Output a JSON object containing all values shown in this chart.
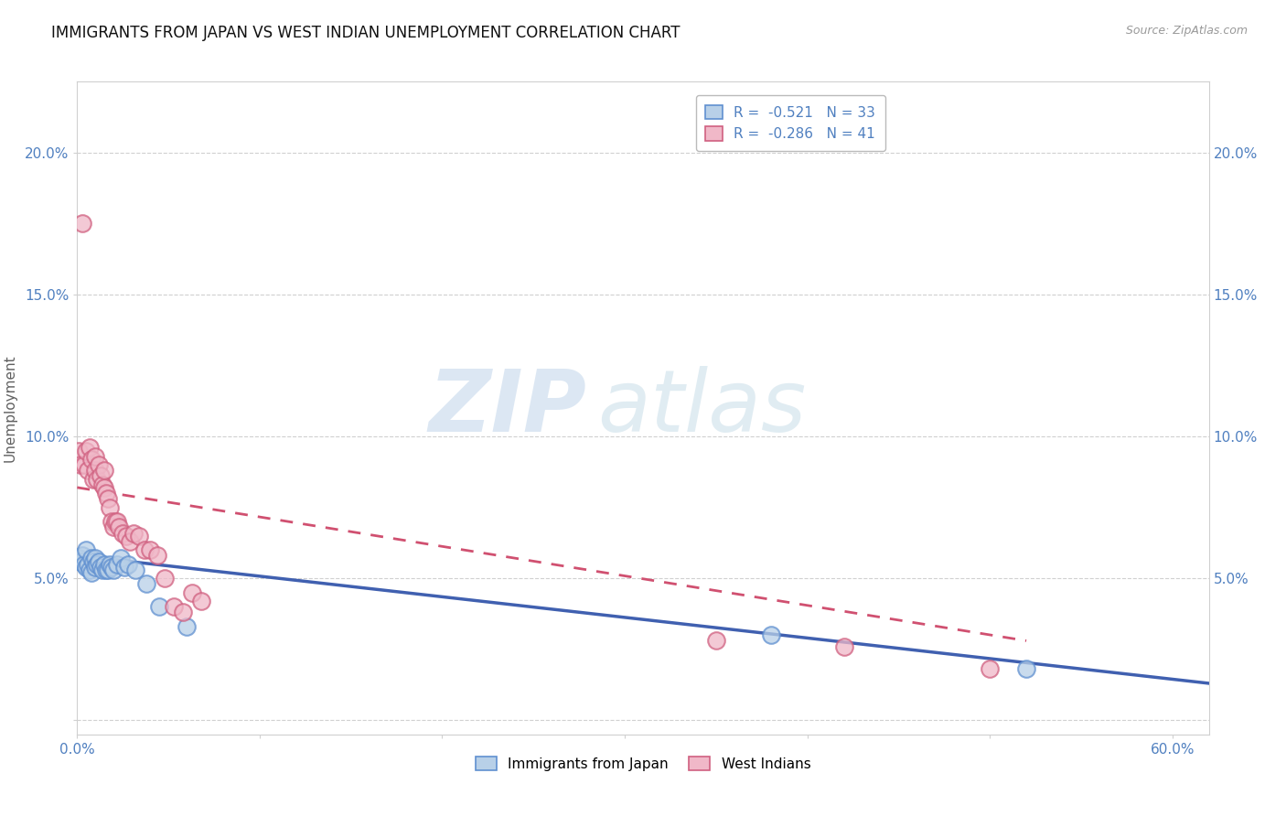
{
  "title": "IMMIGRANTS FROM JAPAN VS WEST INDIAN UNEMPLOYMENT CORRELATION CHART",
  "source": "Source: ZipAtlas.com",
  "ylabel": "Unemployment",
  "xlim": [
    0.0,
    0.62
  ],
  "ylim": [
    -0.005,
    0.225
  ],
  "yticks": [
    0.0,
    0.05,
    0.1,
    0.15,
    0.2
  ],
  "ytick_labels": [
    "",
    "5.0%",
    "10.0%",
    "15.0%",
    "20.0%"
  ],
  "xticks": [
    0.0,
    0.1,
    0.2,
    0.3,
    0.4,
    0.5,
    0.6
  ],
  "xtick_labels_visible": [
    "0.0%",
    "",
    "",
    "",
    "",
    "",
    "60.0%"
  ],
  "grid_color": "#d0d0d0",
  "background_color": "#ffffff",
  "watermark_zip": "ZIP",
  "watermark_atlas": "atlas",
  "legend_r1": "R =  -0.521",
  "legend_n1": "N = 33",
  "legend_r2": "R =  -0.286",
  "legend_n2": "N = 41",
  "japan_fill_color": "#b8d0e8",
  "japan_edge_color": "#6090d0",
  "westindian_fill_color": "#f0b8c8",
  "westindian_edge_color": "#d06080",
  "japan_line_color": "#4060b0",
  "westindian_line_color": "#d05070",
  "japan_scatter_x": [
    0.001,
    0.002,
    0.003,
    0.004,
    0.005,
    0.005,
    0.006,
    0.007,
    0.008,
    0.008,
    0.009,
    0.01,
    0.01,
    0.011,
    0.012,
    0.013,
    0.014,
    0.015,
    0.016,
    0.017,
    0.018,
    0.019,
    0.02,
    0.022,
    0.024,
    0.026,
    0.028,
    0.032,
    0.038,
    0.045,
    0.06,
    0.38,
    0.52
  ],
  "japan_scatter_y": [
    0.057,
    0.056,
    0.058,
    0.055,
    0.054,
    0.06,
    0.055,
    0.053,
    0.052,
    0.057,
    0.056,
    0.057,
    0.054,
    0.055,
    0.056,
    0.054,
    0.053,
    0.055,
    0.053,
    0.053,
    0.055,
    0.054,
    0.053,
    0.055,
    0.057,
    0.054,
    0.055,
    0.053,
    0.048,
    0.04,
    0.033,
    0.03,
    0.018
  ],
  "westindian_scatter_x": [
    0.001,
    0.002,
    0.003,
    0.004,
    0.005,
    0.006,
    0.007,
    0.008,
    0.009,
    0.01,
    0.01,
    0.011,
    0.012,
    0.013,
    0.014,
    0.015,
    0.015,
    0.016,
    0.017,
    0.018,
    0.019,
    0.02,
    0.021,
    0.022,
    0.023,
    0.025,
    0.027,
    0.029,
    0.031,
    0.034,
    0.037,
    0.04,
    0.044,
    0.048,
    0.053,
    0.058,
    0.063,
    0.068,
    0.35,
    0.42,
    0.5
  ],
  "westindian_scatter_y": [
    0.095,
    0.09,
    0.175,
    0.09,
    0.095,
    0.088,
    0.096,
    0.092,
    0.085,
    0.088,
    0.093,
    0.085,
    0.09,
    0.086,
    0.083,
    0.082,
    0.088,
    0.08,
    0.078,
    0.075,
    0.07,
    0.068,
    0.07,
    0.07,
    0.068,
    0.066,
    0.065,
    0.063,
    0.066,
    0.065,
    0.06,
    0.06,
    0.058,
    0.05,
    0.04,
    0.038,
    0.045,
    0.042,
    0.028,
    0.026,
    0.018
  ],
  "japan_line_x0": 0.0,
  "japan_line_y0": 0.058,
  "japan_line_x1": 0.62,
  "japan_line_y1": 0.013,
  "wi_line_x0": 0.0,
  "wi_line_y0": 0.082,
  "wi_line_x1": 0.52,
  "wi_line_y1": 0.028,
  "title_fontsize": 12,
  "axis_tick_color": "#5080c0",
  "axis_label_color": "#606060"
}
